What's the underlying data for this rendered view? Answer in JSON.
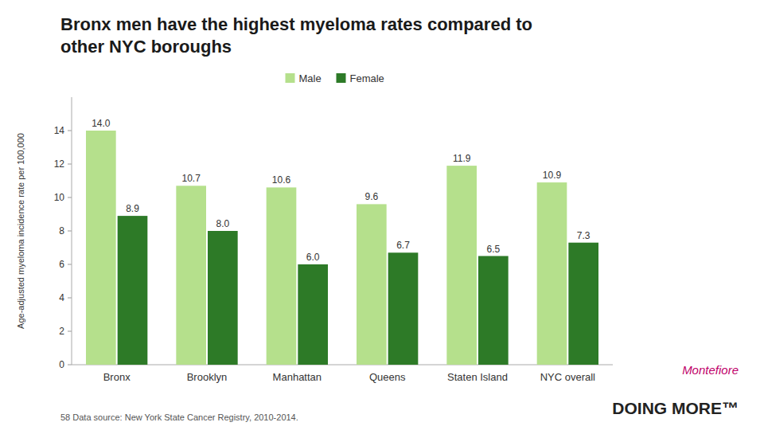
{
  "chart_data": {
    "type": "bar",
    "title": "Bronx men have the highest myeloma rates compared to\nother NYC boroughs",
    "y_label": "Age-adjusted myeloma incidence rate per 100,000",
    "categories": [
      "Bronx",
      "Brooklyn",
      "Manhattan",
      "Queens",
      "Staten Island",
      "NYC overall"
    ],
    "series": [
      {
        "name": "Male",
        "color": "#b5e08c",
        "values": [
          14.0,
          10.7,
          10.6,
          9.6,
          11.9,
          10.9
        ],
        "value_labels": [
          "14.0",
          "10.7",
          "10.6",
          "9.6",
          "11.9",
          "10.9"
        ]
      },
      {
        "name": "Female",
        "color": "#2d7a27",
        "values": [
          8.9,
          8.0,
          6.0,
          6.7,
          6.5,
          7.3
        ],
        "value_labels": [
          "8.9",
          "8.0",
          "6.0",
          "6.7",
          "6.5",
          "7.3"
        ]
      }
    ],
    "ylim": [
      0,
      16
    ],
    "yticks": [
      0,
      2,
      4,
      6,
      8,
      10,
      12,
      14
    ],
    "grid": false,
    "legend": "top",
    "data_labels": true,
    "annotations": [
      {
        "text": "58  Data source: New York State Cancer Registry, 2010-2014."
      },
      {
        "text": "Montefiore",
        "color": "#c0006a"
      },
      {
        "text": "DOING MORE™",
        "color": "#222222"
      }
    ]
  }
}
